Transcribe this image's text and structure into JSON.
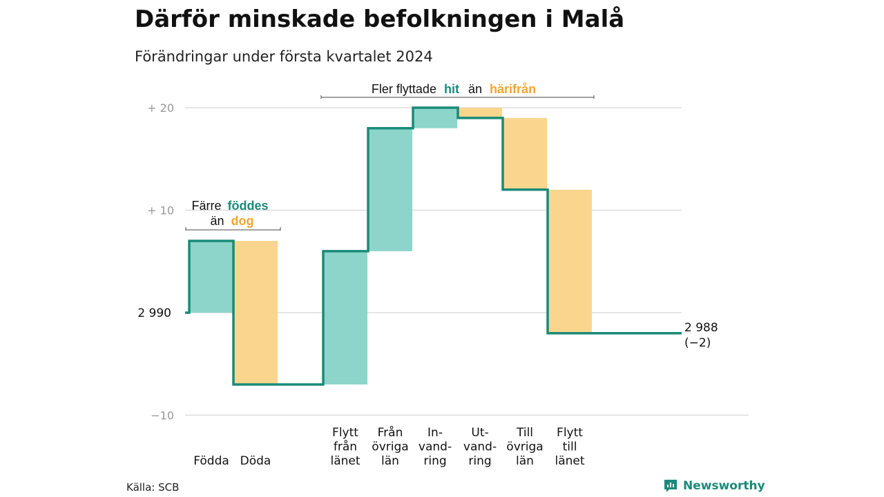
{
  "title": "Därför minskade befolkningen i Malå",
  "subtitle": "Förändringar under första kvartalet 2024",
  "source": "Källa: SCB",
  "brand": "Newsworthy",
  "colors": {
    "inflow": "#8dd5cb",
    "outflow": "#fad58e",
    "line": "#1a8a78",
    "teal_text": "#1a8a78",
    "orange_text": "#f2a531",
    "grid": "#dddddd"
  },
  "annotations": {
    "births": {
      "line1_a": "Färre",
      "line1_b": "föddes",
      "line2_a": "än",
      "line2_b": "dog"
    },
    "moves": {
      "a": "Fler flyttade",
      "b": "hit",
      "c": "än",
      "d": "härifrån"
    }
  },
  "chart_data": {
    "type": "waterfall",
    "start_value": 2990,
    "start_label": "2 990",
    "end_value": 2988,
    "end_label": "2 988",
    "end_change_label": "(−2)",
    "y_ticks": [
      {
        "offset": 20,
        "label": "+ 20"
      },
      {
        "offset": 10,
        "label": "+ 10"
      },
      {
        "offset": -10,
        "label": "−10"
      }
    ],
    "ylim": [
      -10,
      20
    ],
    "categories": [
      {
        "label_lines": [
          "Födda"
        ],
        "change": 7,
        "type": "inflow"
      },
      {
        "label_lines": [
          "Döda"
        ],
        "change": -14,
        "type": "outflow"
      },
      {
        "label_lines": [
          "Flytt",
          "från",
          "länet"
        ],
        "change": 13,
        "type": "inflow"
      },
      {
        "label_lines": [
          "Från",
          "övriga",
          "län"
        ],
        "change": 12,
        "type": "inflow"
      },
      {
        "label_lines": [
          "In-",
          "vand-",
          "ring"
        ],
        "change": 2,
        "type": "inflow"
      },
      {
        "label_lines": [
          "Ut-",
          "vand-",
          "ring"
        ],
        "change": -1,
        "type": "outflow"
      },
      {
        "label_lines": [
          "Till",
          "övriga",
          "län"
        ],
        "change": -7,
        "type": "outflow"
      },
      {
        "label_lines": [
          "Flytt",
          "till",
          "länet"
        ],
        "change": -14,
        "type": "outflow"
      }
    ]
  }
}
